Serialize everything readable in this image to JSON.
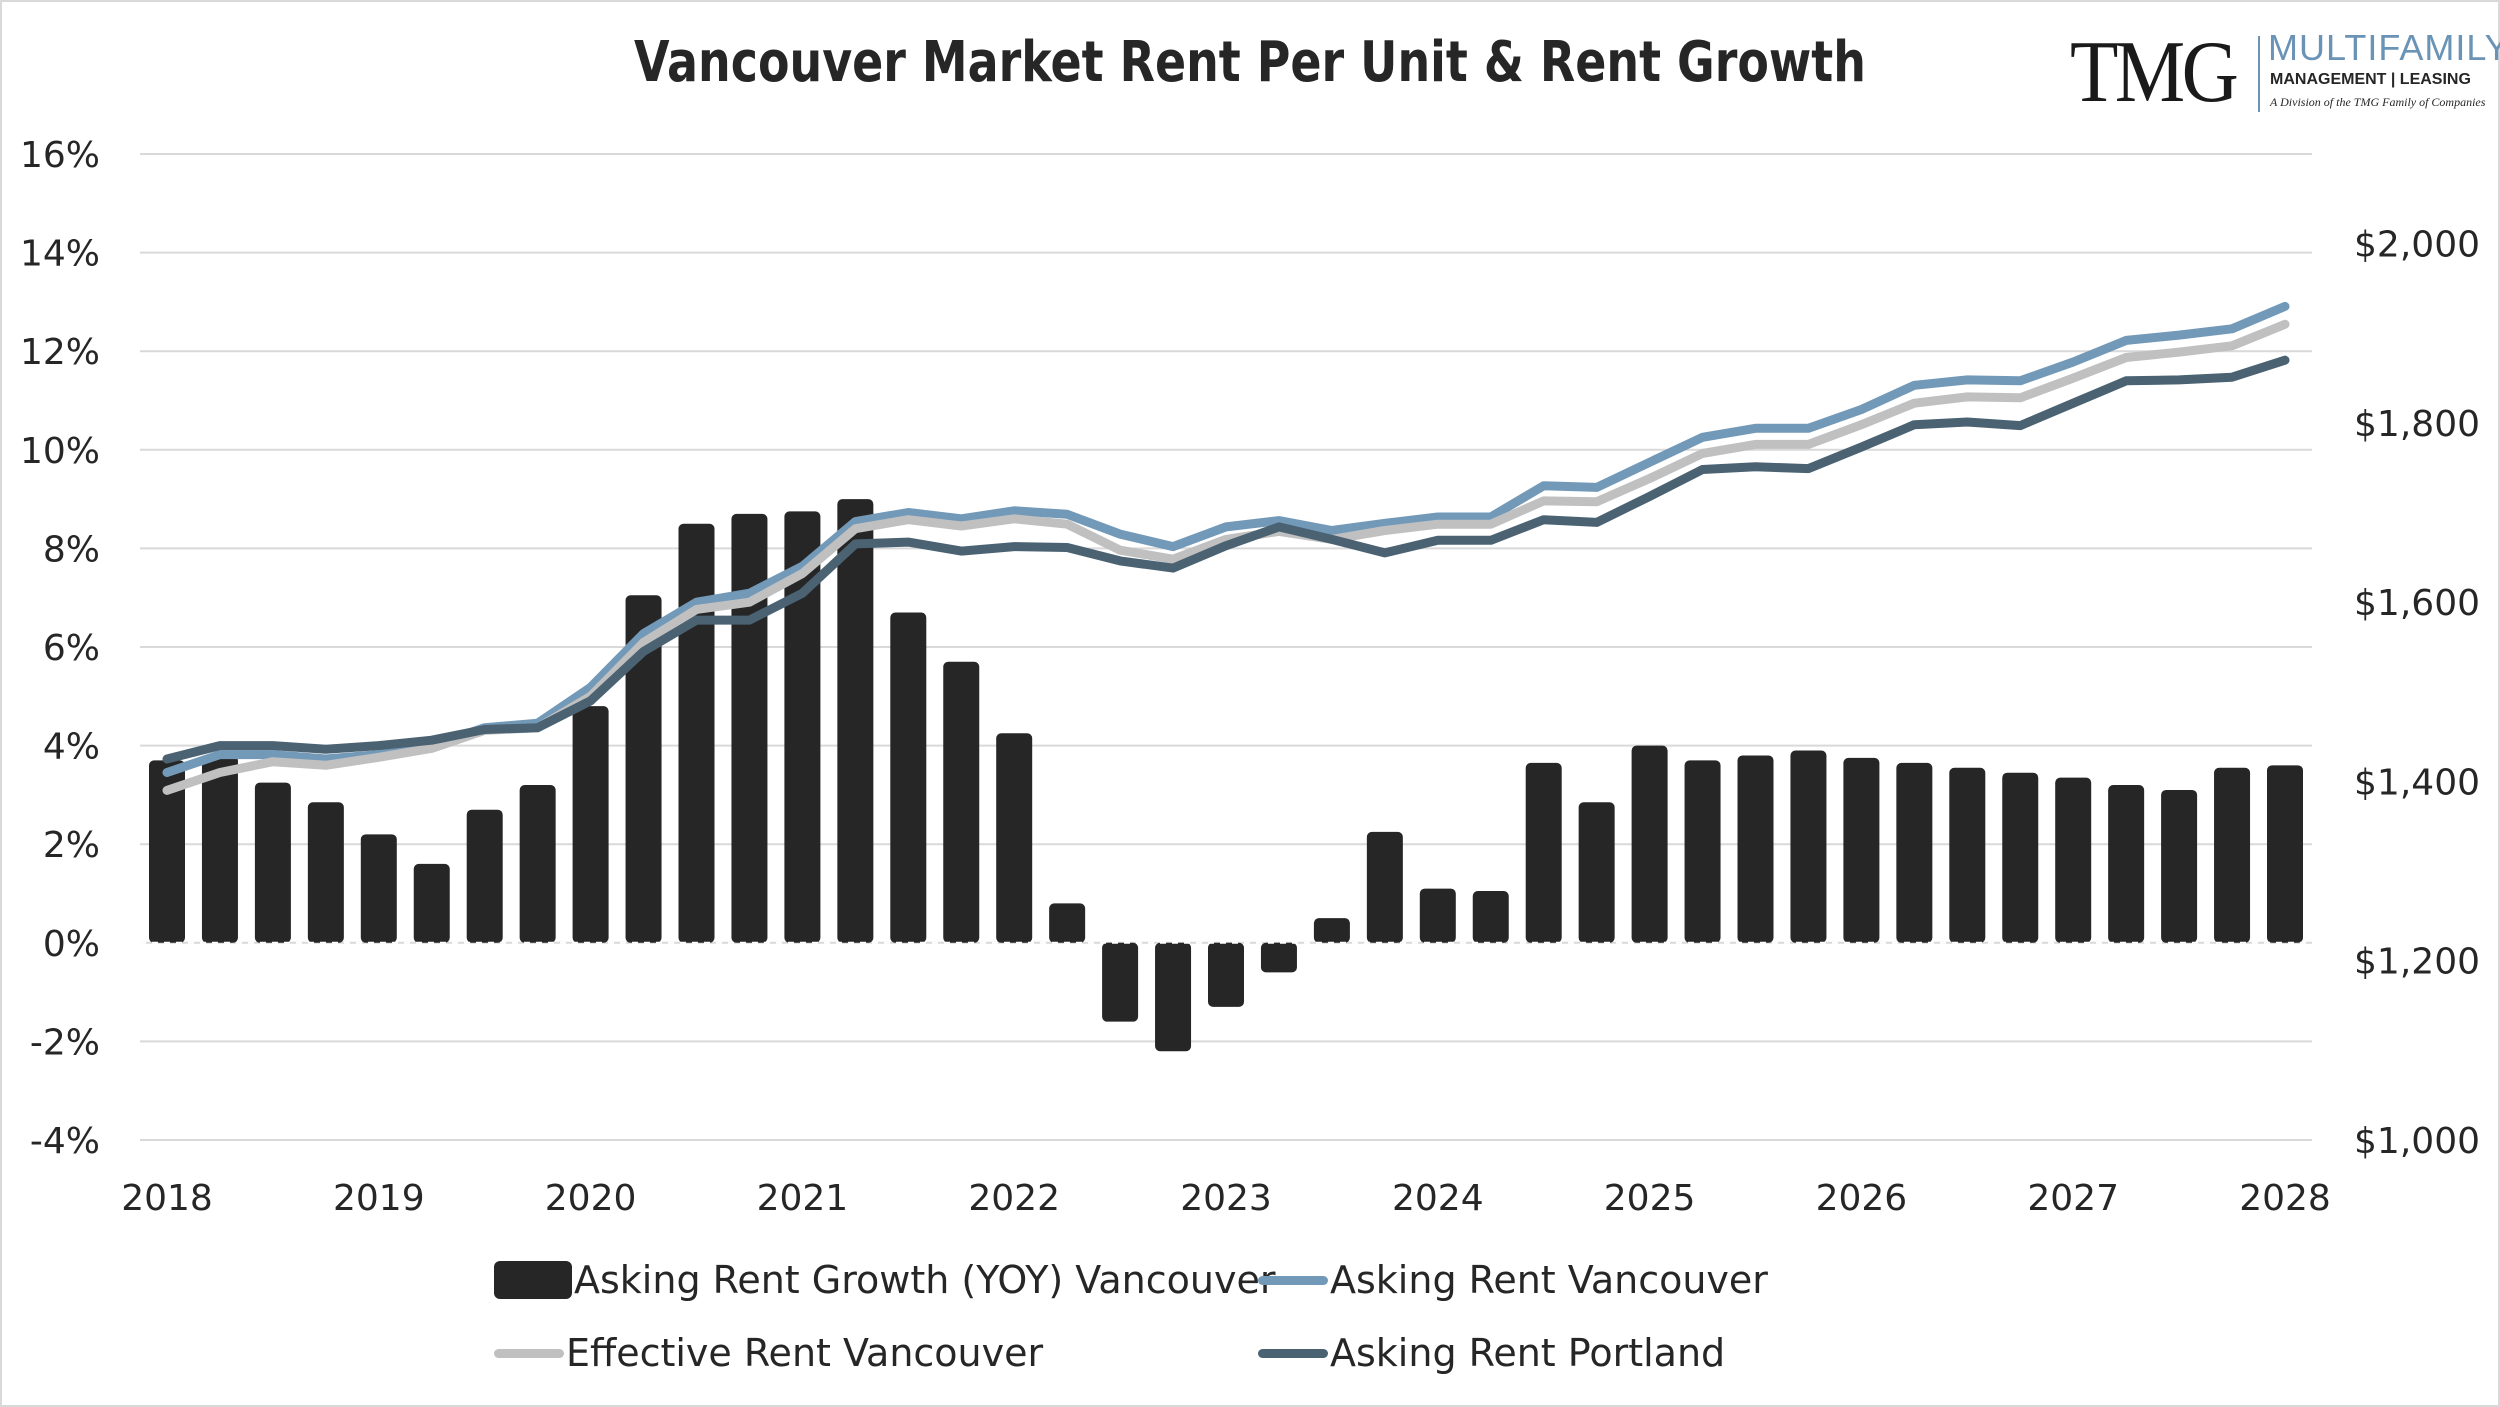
{
  "chart_data": {
    "type": "bar+line",
    "title": "Vancouver Market Rent Per Unit & Rent Growth",
    "x_labels": [
      "2018",
      "2019",
      "2020",
      "2021",
      "2022",
      "2023",
      "2024",
      "2025",
      "2026",
      "2027",
      "2028"
    ],
    "x_range": [
      2018,
      2028
    ],
    "left_axis": {
      "range": [
        -4,
        16
      ],
      "ticks": [
        -4,
        -2,
        0,
        2,
        4,
        6,
        8,
        10,
        12,
        14,
        16
      ],
      "tick_labels": [
        "-4%",
        "-2%",
        "0%",
        "2%",
        "4%",
        "6%",
        "8%",
        "10%",
        "12%",
        "14%",
        "16%"
      ]
    },
    "right_axis": {
      "range": [
        1000,
        2100
      ],
      "ticks": [
        1000,
        1200,
        1400,
        1600,
        1800,
        2000
      ],
      "tick_labels": [
        "$1,000",
        "$1,200",
        "$1,400",
        "$1,600",
        "$1,800",
        "$2,000"
      ]
    },
    "grid": true,
    "legend_position": "bottom",
    "bar_series": {
      "name": "Asking Rent Growth (YOY) Vancouver",
      "color": "#262626",
      "axis": "left",
      "x": [
        2018.0,
        2018.25,
        2018.5,
        2018.75,
        2019.0,
        2019.25,
        2019.5,
        2019.75,
        2020.0,
        2020.25,
        2020.5,
        2020.75,
        2021.0,
        2021.25,
        2021.5,
        2021.75,
        2022.0,
        2022.25,
        2022.5,
        2022.75,
        2023.0,
        2023.25,
        2023.5,
        2023.75,
        2024.0,
        2024.25,
        2024.5,
        2024.75,
        2025.0,
        2025.25,
        2025.5,
        2025.75,
        2026.0,
        2026.25,
        2026.5,
        2026.75,
        2027.0,
        2027.25,
        2027.5,
        2027.75,
        2028.0
      ],
      "values": [
        3.7,
        3.8,
        3.25,
        2.85,
        2.2,
        1.6,
        2.7,
        3.2,
        4.8,
        7.05,
        8.5,
        8.7,
        8.75,
        9.0,
        6.7,
        5.7,
        4.25,
        0.8,
        -1.6,
        -2.2,
        -1.3,
        -0.6,
        0.5,
        2.25,
        1.1,
        1.05,
        3.65,
        2.85,
        4.0,
        3.7,
        3.8,
        3.9,
        3.75,
        3.65,
        3.55,
        3.45,
        3.35,
        3.2,
        3.1,
        3.55,
        3.6
      ]
    },
    "line_series": [
      {
        "name": "Asking Rent Vancouver",
        "color": "#7399b8",
        "axis": "right",
        "x": [
          2018.0,
          2018.25,
          2018.5,
          2018.75,
          2019.0,
          2019.25,
          2019.5,
          2019.75,
          2020.0,
          2020.25,
          2020.5,
          2020.75,
          2021.0,
          2021.25,
          2021.5,
          2021.75,
          2022.0,
          2022.25,
          2022.5,
          2022.75,
          2023.0,
          2023.25,
          2023.5,
          2023.75,
          2024.0,
          2024.25,
          2024.5,
          2024.75,
          2025.0,
          2025.25,
          2025.5,
          2025.75,
          2026.0,
          2026.25,
          2026.5,
          2026.75,
          2027.0,
          2027.25,
          2027.5,
          2027.75,
          2028.0
        ],
        "values": [
          1410,
          1430,
          1430,
          1425,
          1430,
          1440,
          1460,
          1465,
          1505,
          1565,
          1600,
          1610,
          1640,
          1690,
          1700,
          1693,
          1702,
          1698,
          1676,
          1662,
          1684,
          1691,
          1680,
          1688,
          1695,
          1695,
          1730,
          1728,
          1756,
          1784,
          1794,
          1794,
          1815,
          1842,
          1848,
          1847,
          1868,
          1892,
          1898,
          1905,
          1930
        ]
      },
      {
        "name": "Effective Rent Vancouver",
        "color": "#c0c0c0",
        "axis": "right",
        "x": [
          2018.0,
          2018.25,
          2018.5,
          2018.75,
          2019.0,
          2019.25,
          2019.5,
          2019.75,
          2020.0,
          2020.25,
          2020.5,
          2020.75,
          2021.0,
          2021.25,
          2021.5,
          2021.75,
          2022.0,
          2022.25,
          2022.5,
          2022.75,
          2023.0,
          2023.25,
          2023.5,
          2023.75,
          2024.0,
          2024.25,
          2024.5,
          2024.75,
          2025.0,
          2025.25,
          2025.5,
          2025.75,
          2026.0,
          2026.25,
          2026.5,
          2026.75,
          2027.0,
          2027.25,
          2027.5,
          2027.75,
          2028.0
        ],
        "values": [
          1390,
          1410,
          1422,
          1418,
          1427,
          1437,
          1457,
          1460,
          1495,
          1555,
          1592,
          1600,
          1632,
          1682,
          1692,
          1685,
          1693,
          1687,
          1658,
          1648,
          1670,
          1679,
          1670,
          1680,
          1687,
          1687,
          1713,
          1712,
          1738,
          1766,
          1776,
          1776,
          1798,
          1822,
          1829,
          1828,
          1850,
          1873,
          1879,
          1886,
          1910
        ]
      },
      {
        "name": "Asking Rent Portland",
        "color": "#4a6272",
        "axis": "right",
        "x": [
          2018.0,
          2018.25,
          2018.5,
          2018.75,
          2019.0,
          2019.25,
          2019.5,
          2019.75,
          2020.0,
          2020.25,
          2020.5,
          2020.75,
          2021.0,
          2021.25,
          2021.5,
          2021.75,
          2022.0,
          2022.25,
          2022.5,
          2022.75,
          2023.0,
          2023.25,
          2023.5,
          2023.75,
          2024.0,
          2024.25,
          2024.5,
          2024.75,
          2025.0,
          2025.25,
          2025.5,
          2025.75,
          2026.0,
          2026.25,
          2026.5,
          2026.75,
          2027.0,
          2027.25,
          2027.5,
          2027.75,
          2028.0
        ],
        "values": [
          1425,
          1440,
          1440,
          1436,
          1440,
          1446,
          1458,
          1460,
          1490,
          1545,
          1580,
          1580,
          1610,
          1665,
          1667,
          1657,
          1662,
          1661,
          1646,
          1638,
          1663,
          1684,
          1670,
          1655,
          1669,
          1669,
          1692,
          1689,
          1718,
          1748,
          1751,
          1749,
          1773,
          1798,
          1801,
          1797,
          1822,
          1847,
          1848,
          1851,
          1870
        ]
      }
    ]
  },
  "logo": {
    "brand": "TMG",
    "line1": "MULTIFAMILY",
    "line2": "MANAGEMENT | LEASING",
    "line3": "A Division of the TMG Family of Companies"
  }
}
